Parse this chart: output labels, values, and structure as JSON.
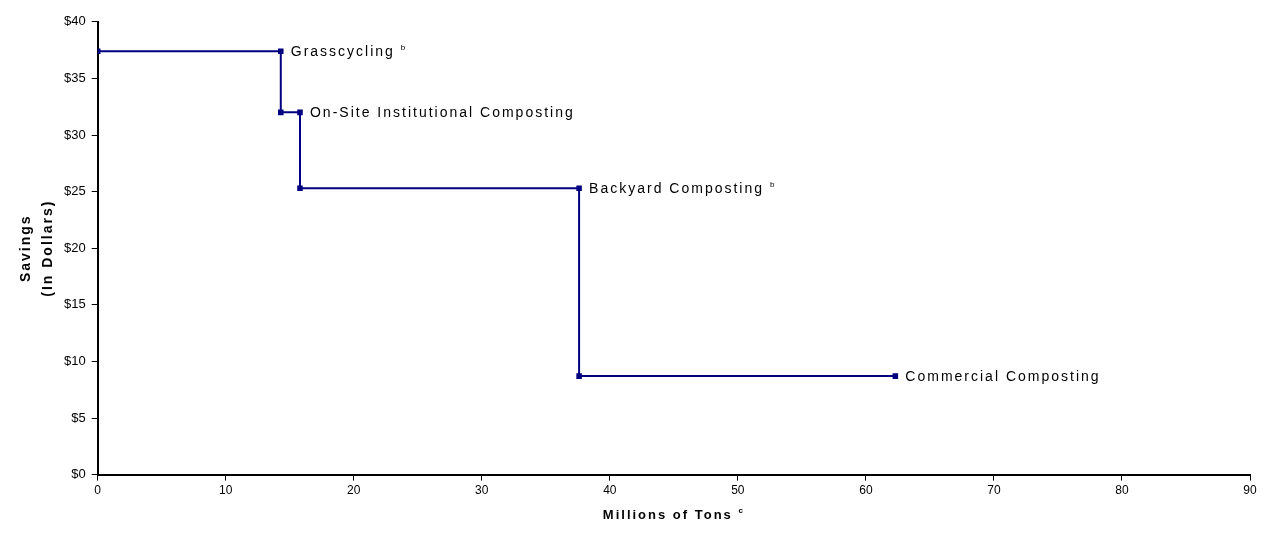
{
  "chart_data": {
    "type": "step",
    "xlabel": "Millions of Tons $^{c}$",
    "ylabel": "Savings (In Dollars)",
    "x": [
      0,
      14.3,
      14.3,
      15.8,
      15.8,
      37.6,
      37.6,
      62.3
    ],
    "series": [
      {
        "color": "#000080",
        "values": [
          37.4,
          37.4,
          32.0,
          32.0,
          25.3,
          25.3,
          8.7,
          8.7
        ]
      }
    ],
    "xlim": [
      0,
      90
    ],
    "xticks": [
      0,
      10,
      20,
      30,
      40,
      50,
      60,
      70,
      80,
      90
    ],
    "ylim": [
      0,
      40
    ],
    "yticks": [
      {
        "value": 0,
        "label": "$0"
      },
      {
        "value": 5,
        "label": "$5"
      },
      {
        "value": 10,
        "label": "$10"
      },
      {
        "value": 15,
        "label": "$15"
      },
      {
        "value": 20,
        "label": "$20"
      },
      {
        "value": 25,
        "label": "$25"
      },
      {
        "value": 30,
        "label": "$30"
      },
      {
        "value": 35,
        "label": "$35"
      },
      {
        "value": 40,
        "label": "$40"
      }
    ],
    "annotations": [
      {
        "text": "Grasscycling $^{b}$",
        "x": 14.3,
        "y": 37.4
      },
      {
        "text": "On-Site Institutional Composting",
        "x": 15.8,
        "y": 32.0
      },
      {
        "text": "Backyard Composting $^{b}$",
        "x": 37.6,
        "y": 25.3
      },
      {
        "text": "Commercial Composting",
        "x": 62.3,
        "y": 8.7
      }
    ],
    "grid": false,
    "legend": false,
    "marker": "square",
    "line_style": "solid"
  }
}
